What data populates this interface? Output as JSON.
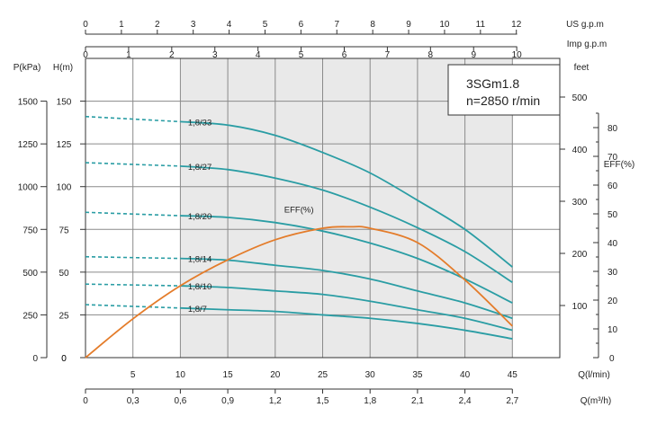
{
  "chart_data": {
    "type": "line",
    "info_box": {
      "model": "3SGm1.8",
      "speed": "n=2850 r/min"
    },
    "flow_axis": {
      "unit_label": "Q(l/min)",
      "range": [
        0,
        45
      ],
      "ticks": [
        "5",
        "10",
        "15",
        "20",
        "25",
        "30",
        "35",
        "40",
        "45"
      ],
      "zero_label": "0"
    },
    "flow_m3h_axis": {
      "unit_label": "Q(m³/h)",
      "ticks": [
        "0",
        "0,3",
        "0,6",
        "0,9",
        "1,2",
        "1,5",
        "1,8",
        "2,1",
        "2,4",
        "2,7"
      ]
    },
    "us_gpm_axis": {
      "unit_label": "US  g.p.m",
      "ticks": [
        "0",
        "1",
        "2",
        "3",
        "4",
        "5",
        "6",
        "7",
        "8",
        "9",
        "10",
        "11",
        "12"
      ]
    },
    "imp_gpm_axis": {
      "unit_label": "Imp  g.p.m",
      "ticks": [
        "0",
        "1",
        "2",
        "3",
        "4",
        "5",
        "6",
        "7",
        "8",
        "9",
        "10"
      ]
    },
    "head_axis": {
      "unit_label": "H(m)",
      "range": [
        0,
        170
      ],
      "ticks": [
        "0",
        "25",
        "50",
        "75",
        "100",
        "125",
        "150"
      ]
    },
    "pressure_axis": {
      "unit_label": "P(kPa)",
      "ticks": [
        "0",
        "250",
        "500",
        "750",
        "1000",
        "1250",
        "1500"
      ]
    },
    "feet_axis": {
      "unit_label": "feet",
      "ticks": [
        "100",
        "200",
        "300",
        "400",
        "500"
      ]
    },
    "eff_axis": {
      "unit_label": "EFF(%)",
      "range": [
        0,
        90
      ],
      "ticks": [
        "10",
        "20",
        "30",
        "40",
        "50",
        "60",
        "70",
        "80"
      ],
      "zero_label": "0"
    },
    "recommended_range": [
      10,
      45
    ],
    "head_series": [
      {
        "name": "1,8/33",
        "x": [
          0,
          10,
          15,
          20,
          25,
          30,
          35,
          40,
          45
        ],
        "y": [
          141,
          138,
          136,
          130,
          120,
          108,
          92,
          75,
          53
        ]
      },
      {
        "name": "1,8/27",
        "x": [
          0,
          10,
          15,
          20,
          25,
          30,
          35,
          40,
          45
        ],
        "y": [
          114,
          112,
          110,
          105,
          98,
          88,
          76,
          62,
          44
        ]
      },
      {
        "name": "1,8/20",
        "x": [
          0,
          10,
          15,
          20,
          25,
          30,
          35,
          40,
          45
        ],
        "y": [
          85,
          83,
          82,
          79,
          74,
          67,
          58,
          46,
          32
        ]
      },
      {
        "name": "1,8/14",
        "x": [
          0,
          10,
          15,
          20,
          25,
          30,
          35,
          40,
          45
        ],
        "y": [
          59,
          58,
          57,
          54,
          51,
          46,
          39,
          32,
          23
        ]
      },
      {
        "name": "1,8/10",
        "x": [
          0,
          10,
          15,
          20,
          25,
          30,
          35,
          40,
          45
        ],
        "y": [
          43,
          42,
          41,
          39,
          37,
          33,
          28,
          23,
          16
        ]
      },
      {
        "name": "1,8/7",
        "x": [
          0,
          10,
          15,
          20,
          25,
          30,
          35,
          40,
          45
        ],
        "y": [
          31,
          29,
          28,
          27,
          25,
          23,
          20,
          16,
          11
        ]
      }
    ],
    "efficiency_series": {
      "name": "EFF(%)",
      "x": [
        0,
        5,
        10,
        15,
        20,
        25,
        28,
        30,
        35,
        40,
        45
      ],
      "y": [
        0,
        13.5,
        25,
        34,
        41,
        45,
        45.5,
        45,
        40,
        27,
        11
      ]
    },
    "colors": {
      "head": "#2a9da4",
      "efficiency": "#e47c2a",
      "grid": "#8a8a8a",
      "recommended_fill": "#e9e9e9"
    }
  }
}
